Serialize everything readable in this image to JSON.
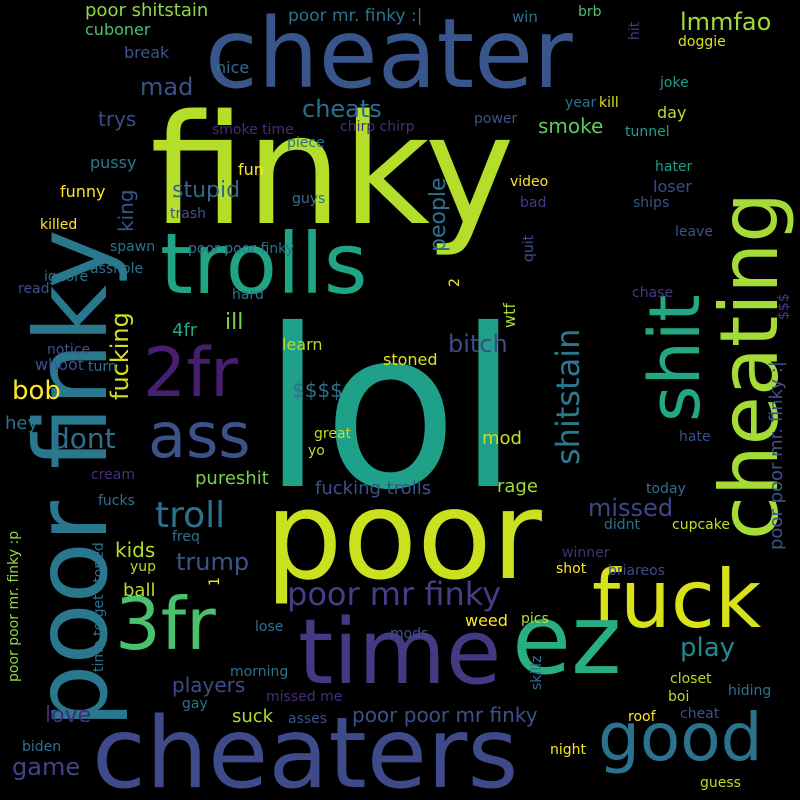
{
  "words": [
    {
      "text": "lol",
      "color": "#1fa088"
    },
    {
      "text": "finky",
      "color": "#b5de2b"
    },
    {
      "text": "cheater",
      "color": "#39568c"
    },
    {
      "text": "poor finky",
      "color": "#2a788e"
    },
    {
      "text": "poor",
      "color": "#cae11f"
    },
    {
      "text": "cheaters",
      "color": "#3f4a8a"
    },
    {
      "text": "cheating",
      "color": "#a5db36"
    },
    {
      "text": "fuck",
      "color": "#d8e219"
    },
    {
      "text": "time",
      "color": "#443a83"
    },
    {
      "text": "ez",
      "color": "#28ae80"
    },
    {
      "text": "trolls",
      "color": "#20a486"
    },
    {
      "text": "good",
      "color": "#2c728e"
    },
    {
      "text": "ass",
      "color": "#3b528b"
    },
    {
      "text": "2fr",
      "color": "#481f70"
    },
    {
      "text": "3fr",
      "color": "#4ac16d"
    },
    {
      "text": "shit",
      "color": "#22a884"
    },
    {
      "text": "poor mr finky",
      "color": "#433e85"
    },
    {
      "text": "troll",
      "color": "#2c728e"
    },
    {
      "text": "shitstain",
      "color": "#2a788e"
    },
    {
      "text": "poor shitstain",
      "color": "#8fd744"
    },
    {
      "text": "poor mr. finky :|",
      "color": "#2c728e"
    },
    {
      "text": "lmmfao",
      "color": "#a0da39"
    },
    {
      "text": "cheats",
      "color": "#2d708e"
    },
    {
      "text": "mad",
      "color": "#3b528b"
    },
    {
      "text": "smoke",
      "color": "#5ec962"
    },
    {
      "text": "stupid",
      "color": "#31688e"
    },
    {
      "text": "bitch",
      "color": "#3e4a89"
    },
    {
      "text": "people",
      "color": "#2c728e"
    },
    {
      "text": "fucking",
      "color": "#d0e11c"
    },
    {
      "text": "dont",
      "color": "#2e6e8e"
    },
    {
      "text": "trump",
      "color": "#39568c"
    },
    {
      "text": "missed",
      "color": "#3f4788"
    },
    {
      "text": "play",
      "color": "#23898e"
    },
    {
      "text": "game",
      "color": "#414487"
    },
    {
      "text": "love",
      "color": "#482878"
    },
    {
      "text": "players",
      "color": "#3e4c8a"
    },
    {
      "text": "bob",
      "color": "#fde725"
    },
    {
      "text": "kids",
      "color": "#b5de2b"
    },
    {
      "text": "poor poor mr finky",
      "color": "#3b528b"
    },
    {
      "text": "poor poor mr. finky :|",
      "color": "#3b528b"
    },
    {
      "text": "pureshit",
      "color": "#7ad151"
    },
    {
      "text": "fucking trolls",
      "color": "#3b528b"
    },
    {
      "text": "rage",
      "color": "#a2da37"
    },
    {
      "text": "suck",
      "color": "#b0dd2f"
    },
    {
      "text": "ball",
      "color": "#b8de29"
    },
    {
      "text": "king",
      "color": "#39568c"
    },
    {
      "text": "ill",
      "color": "#7ad151"
    },
    {
      "text": "4fr",
      "color": "#22a884"
    },
    {
      "text": "hey",
      "color": "#2c728e"
    },
    {
      "text": "mod",
      "color": "#c2df23"
    },
    {
      "text": "$$$$",
      "color": "#2c728e"
    },
    {
      "text": "learn",
      "color": "#b5de2b"
    },
    {
      "text": "stoned",
      "color": "#dde318"
    },
    {
      "text": "wtf",
      "color": "#a8db34"
    },
    {
      "text": "whoot",
      "color": "#3b528b"
    },
    {
      "text": "funny",
      "color": "#fde725"
    },
    {
      "text": "fun",
      "color": "#fde725"
    },
    {
      "text": "pussy",
      "color": "#2a788e"
    },
    {
      "text": "trys",
      "color": "#3e4a89"
    },
    {
      "text": "nice",
      "color": "#2d708e"
    },
    {
      "text": "cuboner",
      "color": "#4ac16d"
    },
    {
      "text": "break",
      "color": "#3b528b"
    },
    {
      "text": "brb",
      "color": "#4ac16d"
    },
    {
      "text": "win",
      "color": "#2c728e"
    },
    {
      "text": "hit",
      "color": "#443a83"
    },
    {
      "text": "doggie",
      "color": "#dde318"
    },
    {
      "text": "joke",
      "color": "#1f9e89"
    },
    {
      "text": "kill",
      "color": "#dde318"
    },
    {
      "text": "year",
      "color": "#2c728e"
    },
    {
      "text": "day",
      "color": "#b5de2b"
    },
    {
      "text": "power",
      "color": "#3b528b"
    },
    {
      "text": "tunnel",
      "color": "#1f9e89"
    },
    {
      "text": "smoke time",
      "color": "#472d7b"
    },
    {
      "text": "chirp chirp",
      "color": "#472d7b"
    },
    {
      "text": "piece",
      "color": "#2c728e"
    },
    {
      "text": "hater",
      "color": "#1f9e89"
    },
    {
      "text": "video",
      "color": "#fde725"
    },
    {
      "text": "loser",
      "color": "#3e4a89"
    },
    {
      "text": "bad",
      "color": "#443a83"
    },
    {
      "text": "ships",
      "color": "#3b528b"
    },
    {
      "text": "guys",
      "color": "#2c728e"
    },
    {
      "text": "trash",
      "color": "#3b528b"
    },
    {
      "text": "killed",
      "color": "#fde725"
    },
    {
      "text": "spawn",
      "color": "#2c728e"
    },
    {
      "text": "poor poor finky",
      "color": "#2c728e"
    },
    {
      "text": "leave",
      "color": "#3b528b"
    },
    {
      "text": "asshole",
      "color": "#2c728e"
    },
    {
      "text": "quit",
      "color": "#3b528b"
    },
    {
      "text": "2",
      "color": "#fde725"
    },
    {
      "text": "read",
      "color": "#3b528b"
    },
    {
      "text": "ignore",
      "color": "#2c728e"
    },
    {
      "text": "hard",
      "color": "#2c728e"
    },
    {
      "text": "chase",
      "color": "#443a83"
    },
    {
      "text": "$$$",
      "color": "#443a83"
    },
    {
      "text": "notice",
      "color": "#3b528b"
    },
    {
      "text": "turn",
      "color": "#2c728e"
    },
    {
      "text": "great",
      "color": "#c2df23"
    },
    {
      "text": "yo",
      "color": "#b5de2b"
    },
    {
      "text": "hate",
      "color": "#3b528b"
    },
    {
      "text": "cream",
      "color": "#472d7b"
    },
    {
      "text": "today",
      "color": "#2c728e"
    },
    {
      "text": "fucks",
      "color": "#2c728e"
    },
    {
      "text": "didnt",
      "color": "#2c728e"
    },
    {
      "text": "cupcake",
      "color": "#c2df23"
    },
    {
      "text": "freq",
      "color": "#2c728e"
    },
    {
      "text": "winner",
      "color": "#472d7b"
    },
    {
      "text": "yup",
      "color": "#b5de2b"
    },
    {
      "text": "shot",
      "color": "#fde725"
    },
    {
      "text": "briareos",
      "color": "#3e4a89"
    },
    {
      "text": "1",
      "color": "#fde725"
    },
    {
      "text": "lose",
      "color": "#2c728e"
    },
    {
      "text": "mods",
      "color": "#3b528b"
    },
    {
      "text": "weed",
      "color": "#fde725"
    },
    {
      "text": "pics",
      "color": "#b5de2b"
    },
    {
      "text": "morning",
      "color": "#2c728e"
    },
    {
      "text": "skillz",
      "color": "#2c728e"
    },
    {
      "text": "closet",
      "color": "#b5de2b"
    },
    {
      "text": "boi",
      "color": "#b5de2b"
    },
    {
      "text": "hiding",
      "color": "#2c728e"
    },
    {
      "text": "missed me",
      "color": "#472d7b"
    },
    {
      "text": "gay",
      "color": "#2c728e"
    },
    {
      "text": "cheat",
      "color": "#3b528b"
    },
    {
      "text": "roof",
      "color": "#fde725"
    },
    {
      "text": "asses",
      "color": "#3b528b"
    },
    {
      "text": "biden",
      "color": "#2c728e"
    },
    {
      "text": "night",
      "color": "#fde725"
    },
    {
      "text": "guess",
      "color": "#b5de2b"
    },
    {
      "text": "poor poor mr. finky :p",
      "color": "#8fd744"
    },
    {
      "text": "time to get stoned",
      "color": "#2c728e"
    }
  ]
}
